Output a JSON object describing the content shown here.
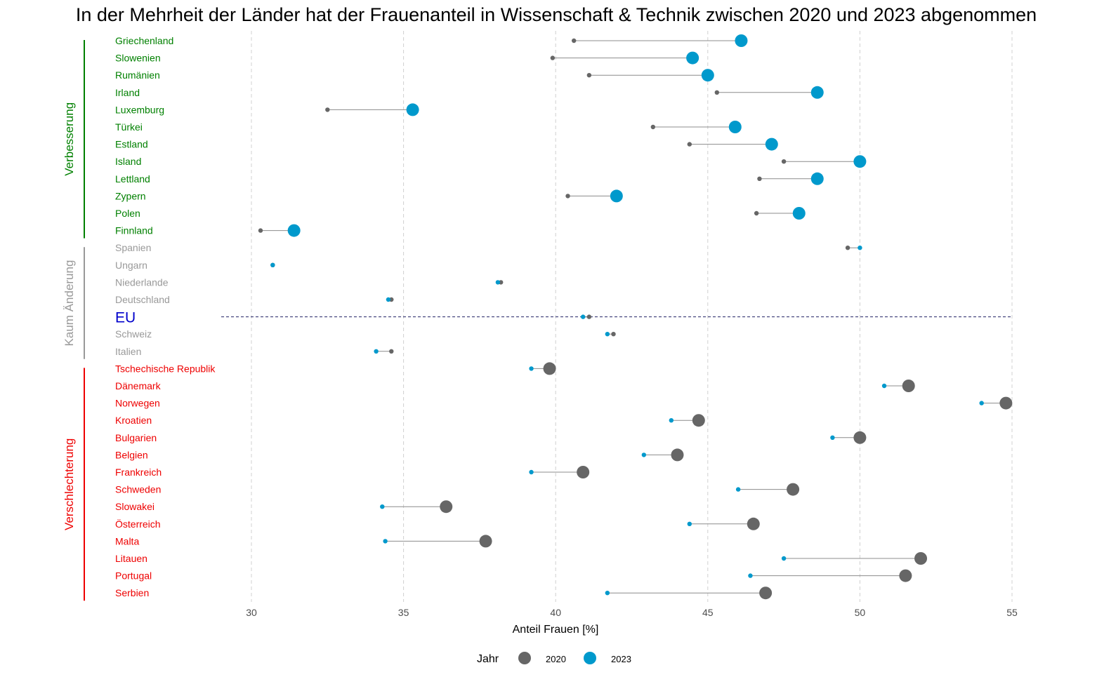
{
  "chart_data": {
    "type": "dumbbell",
    "title": "In der Mehrheit der Länder hat der Frauenanteil in Wissenschaft & Technik zwischen 2020 und 2023 abgenommen",
    "xlabel": "Anteil Frauen [%]",
    "ylabel": "",
    "xlim": [
      27.6,
      55.6
    ],
    "x_ticks": [
      30,
      35,
      40,
      45,
      50,
      55
    ],
    "grid": "vertical dashed",
    "legend": {
      "title": "Jahr",
      "position": "bottom",
      "entries": [
        {
          "label": "2020",
          "color": "#666666"
        },
        {
          "label": "2023",
          "color": "#0099cc"
        }
      ]
    },
    "groups": [
      {
        "label": "Verbesserung",
        "color": "#008000",
        "from": 0,
        "to": 11
      },
      {
        "label": "Kaum Änderung",
        "color": "#999999",
        "from": 12,
        "to": 18
      },
      {
        "label": "Verschlechterung",
        "color": "#ee0000",
        "from": 19,
        "to": 32
      }
    ],
    "reference_line": {
      "label": "EU",
      "color": "#0000cc"
    },
    "rows": [
      {
        "country": "Griechenland",
        "group": "Verbesserung",
        "v2020": 40.6,
        "v2023": 46.1
      },
      {
        "country": "Slowenien",
        "group": "Verbesserung",
        "v2020": 39.9,
        "v2023": 44.5
      },
      {
        "country": "Rumänien",
        "group": "Verbesserung",
        "v2020": 41.1,
        "v2023": 45.0
      },
      {
        "country": "Irland",
        "group": "Verbesserung",
        "v2020": 45.3,
        "v2023": 48.6
      },
      {
        "country": "Luxemburg",
        "group": "Verbesserung",
        "v2020": 32.5,
        "v2023": 35.3
      },
      {
        "country": "Türkei",
        "group": "Verbesserung",
        "v2020": 43.2,
        "v2023": 45.9
      },
      {
        "country": "Estland",
        "group": "Verbesserung",
        "v2020": 44.4,
        "v2023": 47.1
      },
      {
        "country": "Island",
        "group": "Verbesserung",
        "v2020": 47.5,
        "v2023": 50.0
      },
      {
        "country": "Lettland",
        "group": "Verbesserung",
        "v2020": 46.7,
        "v2023": 48.6
      },
      {
        "country": "Zypern",
        "group": "Verbesserung",
        "v2020": 40.4,
        "v2023": 42.0
      },
      {
        "country": "Polen",
        "group": "Verbesserung",
        "v2020": 46.6,
        "v2023": 48.0
      },
      {
        "country": "Finnland",
        "group": "Verbesserung",
        "v2020": 30.3,
        "v2023": 31.4
      },
      {
        "country": "Spanien",
        "group": "Kaum Änderung",
        "v2020": 49.6,
        "v2023": 50.0
      },
      {
        "country": "Ungarn",
        "group": "Kaum Änderung",
        "v2020": 30.7,
        "v2023": 30.7
      },
      {
        "country": "Niederlande",
        "group": "Kaum Änderung",
        "v2020": 38.2,
        "v2023": 38.1
      },
      {
        "country": "Deutschland",
        "group": "Kaum Änderung",
        "v2020": 34.6,
        "v2023": 34.5
      },
      {
        "country": "EU",
        "group": "Kaum Änderung",
        "v2020": 41.1,
        "v2023": 40.9,
        "is_reference": true
      },
      {
        "country": "Schweiz",
        "group": "Kaum Änderung",
        "v2020": 41.9,
        "v2023": 41.7
      },
      {
        "country": "Italien",
        "group": "Kaum Änderung",
        "v2020": 34.6,
        "v2023": 34.1
      },
      {
        "country": "Tschechische Republik",
        "group": "Verschlechterung",
        "v2020": 39.8,
        "v2023": 39.2
      },
      {
        "country": "Dänemark",
        "group": "Verschlechterung",
        "v2020": 51.6,
        "v2023": 50.8
      },
      {
        "country": "Norwegen",
        "group": "Verschlechterung",
        "v2020": 54.8,
        "v2023": 54.0
      },
      {
        "country": "Kroatien",
        "group": "Verschlechterung",
        "v2020": 44.7,
        "v2023": 43.8
      },
      {
        "country": "Bulgarien",
        "group": "Verschlechterung",
        "v2020": 50.0,
        "v2023": 49.1
      },
      {
        "country": "Belgien",
        "group": "Verschlechterung",
        "v2020": 44.0,
        "v2023": 42.9
      },
      {
        "country": "Frankreich",
        "group": "Verschlechterung",
        "v2020": 40.9,
        "v2023": 39.2
      },
      {
        "country": "Schweden",
        "group": "Verschlechterung",
        "v2020": 47.8,
        "v2023": 46.0
      },
      {
        "country": "Slowakei",
        "group": "Verschlechterung",
        "v2020": 36.4,
        "v2023": 34.3
      },
      {
        "country": "Österreich",
        "group": "Verschlechterung",
        "v2020": 46.5,
        "v2023": 44.4
      },
      {
        "country": "Malta",
        "group": "Verschlechterung",
        "v2020": 37.7,
        "v2023": 34.4
      },
      {
        "country": "Litauen",
        "group": "Verschlechterung",
        "v2020": 52.0,
        "v2023": 47.5
      },
      {
        "country": "Portugal",
        "group": "Verschlechterung",
        "v2020": 51.5,
        "v2023": 46.4
      },
      {
        "country": "Serbien",
        "group": "Verschlechterung",
        "v2020": 46.9,
        "v2023": 41.7
      }
    ]
  }
}
